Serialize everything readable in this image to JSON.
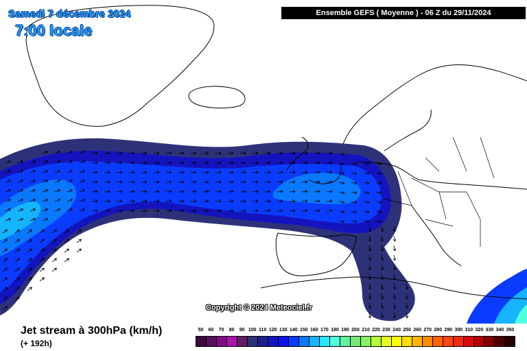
{
  "header": {
    "date": "Samedi 7 décembre 2024",
    "time": "7:00 locale",
    "run": "Ensemble GEFS  ( Moyenne )  -  06 Z du 29/11/2024"
  },
  "map": {
    "region": "North Atlantic and Europe",
    "copyright": "Copyright © 2024 Meteociel.fr",
    "colors": {
      "land_line": "#000000",
      "background": "#ffffff",
      "arrow": "#000000"
    },
    "jet_stream": {
      "direction": "west to east",
      "core_region": "British Isles / North Sea",
      "southern_branch": "Spain to North Africa"
    }
  },
  "footer": {
    "field": "Jet stream à 300hPa (km/h)",
    "lead_time": "(+ 192h)"
  },
  "legend": {
    "labels": [
      "50",
      "60",
      "70",
      "80",
      "90",
      "100",
      "110",
      "120",
      "130",
      "140",
      "150",
      "160",
      "170",
      "180",
      "190",
      "200",
      "210",
      "220",
      "230",
      "240",
      "250",
      "260",
      "270",
      "280",
      "290",
      "300",
      "310",
      "320",
      "330",
      "340",
      "350"
    ],
    "colors": [
      "#3c0a3c",
      "#5a0f5a",
      "#820a82",
      "#aa14aa",
      "#641e64",
      "#2d3278",
      "#1e1e8c",
      "#1414be",
      "#0a14e6",
      "#0a3cff",
      "#0a78ff",
      "#14b4ff",
      "#28e6ff",
      "#50ffdc",
      "#64f0a0",
      "#78e678",
      "#8cf064",
      "#b4ff3c",
      "#e6ff1e",
      "#ffff00",
      "#ffdc00",
      "#ffb400",
      "#ff8c00",
      "#ff6400",
      "#ff4614",
      "#f02814",
      "#dc0a0a",
      "#b40000",
      "#820000",
      "#500000",
      "#280000"
    ]
  }
}
